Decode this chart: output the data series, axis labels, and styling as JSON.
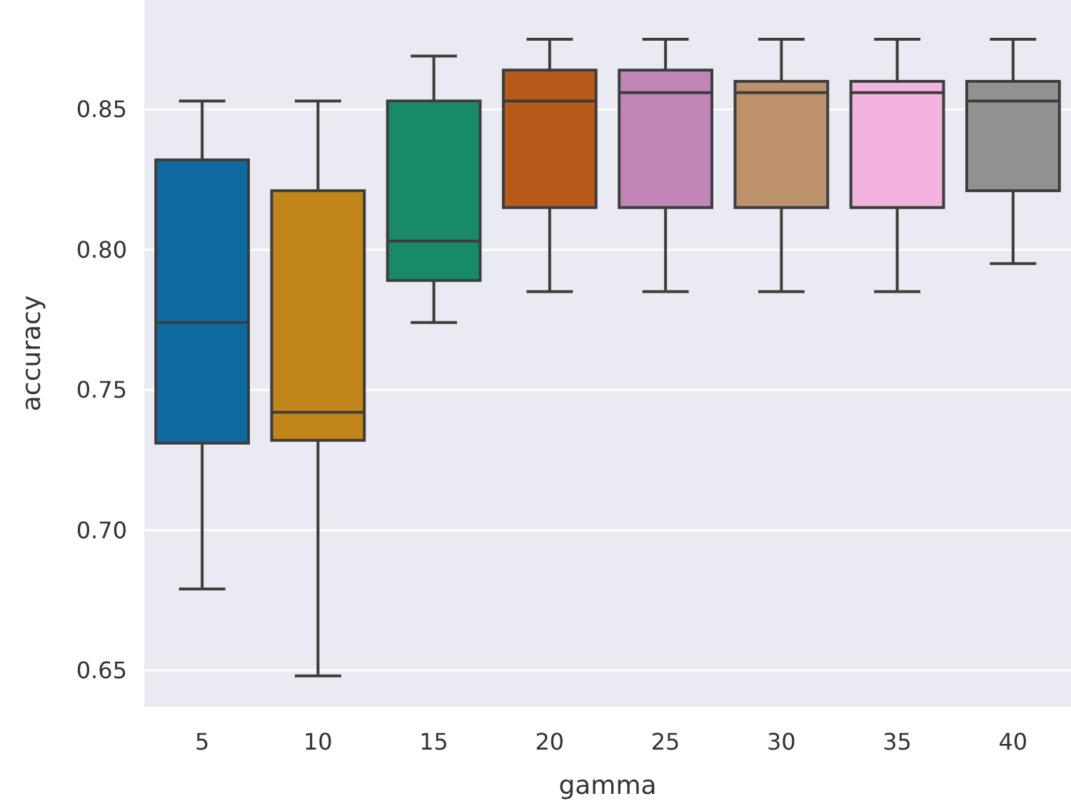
{
  "chart_data": {
    "type": "box",
    "xlabel": "gamma",
    "ylabel": "accuracy",
    "categories": [
      "5",
      "10",
      "15",
      "20",
      "25",
      "30",
      "35",
      "40"
    ],
    "colors": [
      "#0f6a9f",
      "#c3861b",
      "#188a69",
      "#b85a1a",
      "#c185b8",
      "#bd9169",
      "#f2b3de",
      "#919191"
    ],
    "boxes": [
      {
        "low": 0.679,
        "q1": 0.731,
        "median": 0.774,
        "q3": 0.832,
        "high": 0.853
      },
      {
        "low": 0.648,
        "q1": 0.732,
        "median": 0.742,
        "q3": 0.821,
        "high": 0.853
      },
      {
        "low": 0.774,
        "q1": 0.789,
        "median": 0.803,
        "q3": 0.853,
        "high": 0.869
      },
      {
        "low": 0.785,
        "q1": 0.815,
        "median": 0.853,
        "q3": 0.864,
        "high": 0.875
      },
      {
        "low": 0.785,
        "q1": 0.815,
        "median": 0.856,
        "q3": 0.864,
        "high": 0.875
      },
      {
        "low": 0.785,
        "q1": 0.815,
        "median": 0.856,
        "q3": 0.86,
        "high": 0.875
      },
      {
        "low": 0.785,
        "q1": 0.815,
        "median": 0.856,
        "q3": 0.86,
        "high": 0.875
      },
      {
        "low": 0.795,
        "q1": 0.821,
        "median": 0.853,
        "q3": 0.86,
        "high": 0.875
      }
    ],
    "ylim": [
      0.637,
      0.889
    ],
    "yticks": [
      {
        "value": 0.65,
        "label": "0.65"
      },
      {
        "value": 0.7,
        "label": "0.70"
      },
      {
        "value": 0.75,
        "label": "0.75"
      },
      {
        "value": 0.8,
        "label": "0.80"
      },
      {
        "value": 0.85,
        "label": "0.85"
      }
    ],
    "grid": "y"
  }
}
